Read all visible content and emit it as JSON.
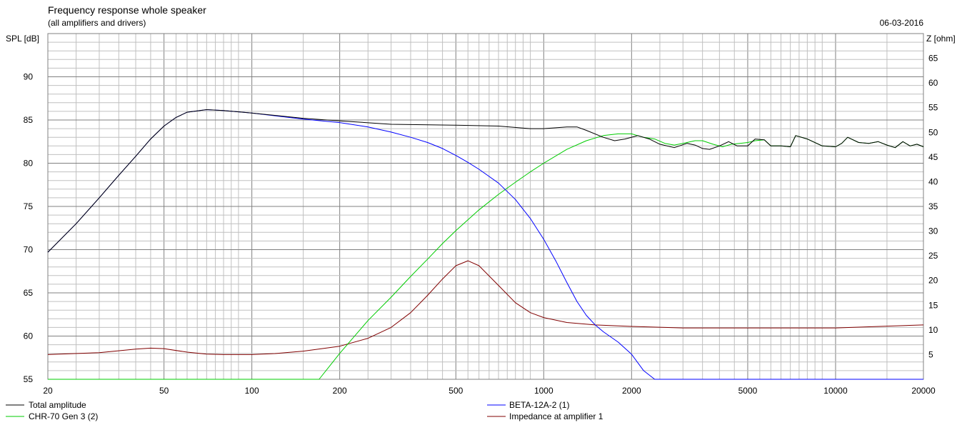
{
  "header": {
    "title": "Frequency response whole speaker",
    "subtitle": "(all amplifiers and drivers)",
    "date": "06-03-2016"
  },
  "colors": {
    "total": "#000000",
    "beta": "#0000ff",
    "chr": "#00cc00",
    "impedance": "#800000",
    "grid": "#c0c0c0",
    "grid_major": "#808080"
  },
  "chart_data": {
    "type": "line",
    "x_scale": "log",
    "xlim": [
      20,
      20000
    ],
    "ylim": [
      55,
      95
    ],
    "y2lim": [
      0,
      70
    ],
    "ylabel": "SPL [dB]",
    "y2label": "Z [ohm]",
    "x_ticks": [
      "20",
      "50",
      "100",
      "200",
      "500",
      "1000",
      "2000",
      "5000",
      "10000",
      "20000"
    ],
    "y_ticks": [
      "55",
      "60",
      "65",
      "70",
      "75",
      "80",
      "85",
      "90"
    ],
    "y2_ticks": [
      "5",
      "10",
      "15",
      "20",
      "25",
      "30",
      "35",
      "40",
      "45",
      "50",
      "55",
      "60",
      "65"
    ],
    "grid": true,
    "series": [
      {
        "name": "Total amplitude",
        "axis": "left",
        "points": [
          [
            20,
            69.7
          ],
          [
            25,
            73
          ],
          [
            30,
            76
          ],
          [
            35,
            78.6
          ],
          [
            40,
            80.8
          ],
          [
            45,
            82.8
          ],
          [
            50,
            84.3
          ],
          [
            55,
            85.3
          ],
          [
            60,
            85.9
          ],
          [
            70,
            86.2
          ],
          [
            80,
            86.1
          ],
          [
            100,
            85.8
          ],
          [
            150,
            85.2
          ],
          [
            200,
            84.9
          ],
          [
            300,
            84.5
          ],
          [
            500,
            84.4
          ],
          [
            700,
            84.3
          ],
          [
            900,
            84.0
          ],
          [
            1000,
            84.0
          ],
          [
            1100,
            84.1
          ],
          [
            1200,
            84.2
          ],
          [
            1300,
            84.2
          ],
          [
            1400,
            83.8
          ],
          [
            1600,
            83.0
          ],
          [
            1750,
            82.6
          ],
          [
            1900,
            82.8
          ],
          [
            2100,
            83.2
          ],
          [
            2300,
            82.8
          ],
          [
            2500,
            82.2
          ],
          [
            2800,
            81.8
          ],
          [
            3100,
            82.3
          ],
          [
            3300,
            82.1
          ],
          [
            3500,
            81.7
          ],
          [
            3700,
            81.6
          ],
          [
            4000,
            82.0
          ],
          [
            4300,
            82.5
          ],
          [
            4600,
            82.0
          ],
          [
            5000,
            82.0
          ],
          [
            5300,
            82.8
          ],
          [
            5700,
            82.7
          ],
          [
            6000,
            82.0
          ],
          [
            6500,
            82.0
          ],
          [
            7000,
            81.9
          ],
          [
            7300,
            83.2
          ],
          [
            8000,
            82.8
          ],
          [
            9000,
            82.0
          ],
          [
            10000,
            81.9
          ],
          [
            10500,
            82.3
          ],
          [
            11000,
            83.0
          ],
          [
            12000,
            82.4
          ],
          [
            13000,
            82.3
          ],
          [
            14000,
            82.5
          ],
          [
            15000,
            82.1
          ],
          [
            16000,
            81.8
          ],
          [
            17000,
            82.5
          ],
          [
            18000,
            82.0
          ],
          [
            19000,
            82.2
          ],
          [
            20000,
            81.9
          ]
        ]
      },
      {
        "name": "BETA-12A-2 (1)",
        "axis": "left",
        "points": [
          [
            20,
            69.7
          ],
          [
            25,
            73
          ],
          [
            30,
            76
          ],
          [
            35,
            78.6
          ],
          [
            40,
            80.8
          ],
          [
            45,
            82.8
          ],
          [
            50,
            84.3
          ],
          [
            55,
            85.3
          ],
          [
            60,
            85.9
          ],
          [
            70,
            86.2
          ],
          [
            80,
            86.1
          ],
          [
            100,
            85.8
          ],
          [
            150,
            85.1
          ],
          [
            200,
            84.7
          ],
          [
            250,
            84.2
          ],
          [
            300,
            83.6
          ],
          [
            350,
            83.0
          ],
          [
            400,
            82.4
          ],
          [
            450,
            81.7
          ],
          [
            500,
            80.9
          ],
          [
            550,
            80.1
          ],
          [
            600,
            79.3
          ],
          [
            700,
            77.7
          ],
          [
            800,
            75.8
          ],
          [
            900,
            73.6
          ],
          [
            1000,
            71.2
          ],
          [
            1100,
            68.7
          ],
          [
            1200,
            66.2
          ],
          [
            1300,
            64.0
          ],
          [
            1400,
            62.4
          ],
          [
            1500,
            61.3
          ],
          [
            1600,
            60.5
          ],
          [
            1800,
            59.3
          ],
          [
            2000,
            57.9
          ],
          [
            2200,
            56.0
          ],
          [
            2400,
            55.0
          ],
          [
            20000,
            55.0
          ]
        ]
      },
      {
        "name": "CHR-70 Gen 3 (2)",
        "axis": "left",
        "points": [
          [
            20,
            55
          ],
          [
            170,
            55
          ],
          [
            200,
            58
          ],
          [
            250,
            61.8
          ],
          [
            300,
            64.5
          ],
          [
            350,
            66.9
          ],
          [
            400,
            68.9
          ],
          [
            450,
            70.7
          ],
          [
            500,
            72.2
          ],
          [
            600,
            74.6
          ],
          [
            700,
            76.4
          ],
          [
            800,
            77.8
          ],
          [
            900,
            79.0
          ],
          [
            1000,
            80.0
          ],
          [
            1200,
            81.6
          ],
          [
            1400,
            82.6
          ],
          [
            1600,
            83.2
          ],
          [
            1800,
            83.4
          ],
          [
            2000,
            83.4
          ],
          [
            2200,
            83.0
          ],
          [
            2400,
            82.8
          ],
          [
            2600,
            82.3
          ],
          [
            2800,
            82.1
          ],
          [
            3000,
            82.3
          ],
          [
            3300,
            82.6
          ],
          [
            3500,
            82.6
          ],
          [
            3800,
            82.2
          ],
          [
            4100,
            81.9
          ],
          [
            4400,
            82.2
          ],
          [
            4700,
            82.3
          ],
          [
            5000,
            82.4
          ],
          [
            5300,
            82.6
          ],
          [
            5700,
            82.7
          ],
          [
            6000,
            82.0
          ],
          [
            6500,
            82.0
          ],
          [
            7000,
            81.9
          ],
          [
            7300,
            83.2
          ],
          [
            8000,
            82.8
          ],
          [
            9000,
            82.0
          ],
          [
            10000,
            81.9
          ],
          [
            10500,
            82.3
          ],
          [
            11000,
            83.0
          ],
          [
            12000,
            82.4
          ],
          [
            13000,
            82.3
          ],
          [
            14000,
            82.5
          ],
          [
            15000,
            82.1
          ],
          [
            16000,
            81.8
          ],
          [
            17000,
            82.5
          ],
          [
            18000,
            82.0
          ],
          [
            19000,
            82.2
          ],
          [
            20000,
            81.9
          ]
        ]
      },
      {
        "name": "Impedance at amplifier 1",
        "axis": "right",
        "points": [
          [
            20,
            5
          ],
          [
            30,
            5.4
          ],
          [
            40,
            6.1
          ],
          [
            45,
            6.3
          ],
          [
            50,
            6.2
          ],
          [
            60,
            5.5
          ],
          [
            70,
            5.1
          ],
          [
            80,
            5.0
          ],
          [
            100,
            5.0
          ],
          [
            120,
            5.2
          ],
          [
            150,
            5.7
          ],
          [
            200,
            6.7
          ],
          [
            250,
            8.3
          ],
          [
            300,
            10.5
          ],
          [
            350,
            13.5
          ],
          [
            400,
            17.0
          ],
          [
            450,
            20.3
          ],
          [
            500,
            23.0
          ],
          [
            550,
            24.0
          ],
          [
            600,
            23.0
          ],
          [
            700,
            19.0
          ],
          [
            800,
            15.5
          ],
          [
            900,
            13.5
          ],
          [
            1000,
            12.5
          ],
          [
            1200,
            11.5
          ],
          [
            1500,
            11.0
          ],
          [
            2000,
            10.7
          ],
          [
            3000,
            10.4
          ],
          [
            5000,
            10.4
          ],
          [
            10000,
            10.4
          ],
          [
            20000,
            11.0
          ]
        ]
      }
    ]
  }
}
